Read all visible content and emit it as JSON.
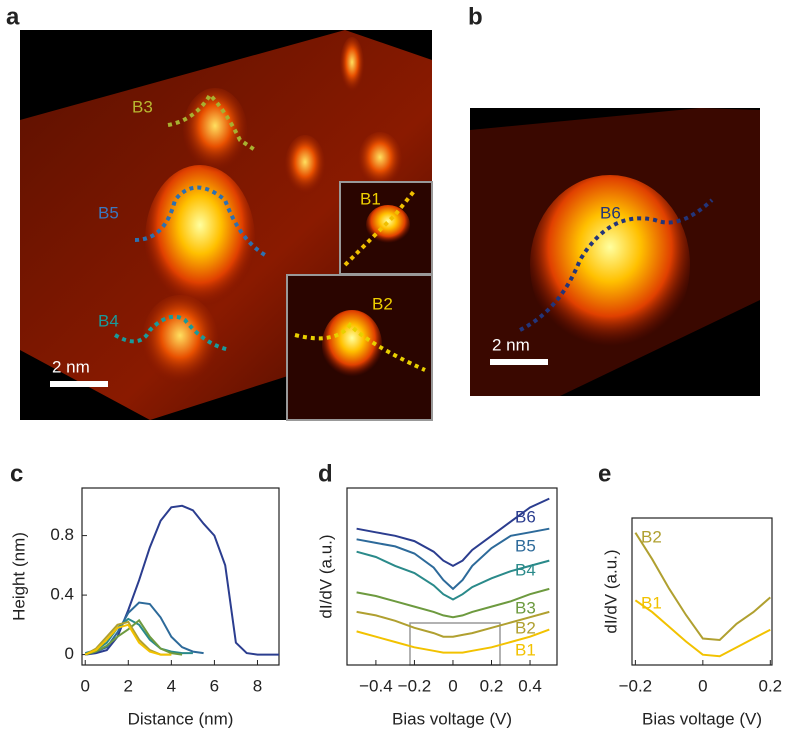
{
  "images": [
    {
      "label": "a",
      "annotations": [
        "B3",
        "B5",
        "B4",
        "B1",
        "B2"
      ],
      "scale_bar": "2 nm"
    },
    {
      "label": "b",
      "annotations": [
        "B6"
      ],
      "scale_bar": "2 nm"
    }
  ],
  "chart_data": [
    {
      "type": "line",
      "label": "c",
      "xlabel": "Distance (nm)",
      "ylabel": "Height (nm)",
      "xlim": [
        -0.15,
        9.0
      ],
      "xticks": [
        0,
        2,
        4,
        6,
        8
      ],
      "ylim": [
        -0.07,
        1.12
      ],
      "yticks": [
        0,
        0.4,
        0.8
      ],
      "series": [
        {
          "color": "#2b3d8f",
          "x": [
            0,
            0.5,
            1,
            1.5,
            2,
            2.5,
            3,
            3.5,
            4,
            4.5,
            5,
            5.5,
            6,
            6.5,
            7,
            7.5,
            8,
            8.5,
            9
          ],
          "values": [
            0.0,
            0.01,
            0.03,
            0.12,
            0.3,
            0.5,
            0.72,
            0.9,
            0.99,
            1.0,
            0.97,
            0.88,
            0.8,
            0.6,
            0.08,
            0.01,
            0.0,
            0.0,
            0.0
          ]
        },
        {
          "color": "#2d6a9a",
          "x": [
            0,
            0.5,
            1,
            1.5,
            2,
            2.5,
            3,
            3.5,
            4,
            4.5,
            5,
            5.5
          ],
          "values": [
            0.0,
            0.02,
            0.05,
            0.15,
            0.28,
            0.35,
            0.34,
            0.25,
            0.12,
            0.05,
            0.02,
            0.01
          ]
        },
        {
          "color": "#2a8a8a",
          "x": [
            0,
            0.5,
            1,
            1.5,
            2,
            2.5,
            3,
            3.5,
            4,
            4.5,
            5
          ],
          "values": [
            0.01,
            0.03,
            0.08,
            0.18,
            0.24,
            0.2,
            0.1,
            0.04,
            0.02,
            0.01,
            0.01
          ]
        },
        {
          "color": "#6d9a3f",
          "x": [
            0,
            0.5,
            1,
            1.5,
            2,
            2.5,
            3,
            3.5,
            4,
            4.5
          ],
          "values": [
            0.0,
            0.02,
            0.06,
            0.12,
            0.17,
            0.23,
            0.12,
            0.04,
            0.01,
            0.0
          ]
        },
        {
          "color": "#b0a030",
          "x": [
            0,
            0.5,
            1,
            1.5,
            2,
            2.5,
            3,
            3.5,
            4
          ],
          "values": [
            0.0,
            0.04,
            0.12,
            0.2,
            0.22,
            0.1,
            0.03,
            0.0,
            0.0
          ]
        },
        {
          "color": "#f2c200",
          "x": [
            0,
            0.5,
            1,
            1.5,
            2,
            2.5,
            3,
            3.5,
            4
          ],
          "values": [
            0.0,
            0.03,
            0.1,
            0.18,
            0.2,
            0.08,
            0.02,
            0.0,
            0.0
          ]
        }
      ]
    },
    {
      "type": "line",
      "label": "d",
      "xlabel": "Bias voltage (V)",
      "ylabel": "dI/dV (a.u.)",
      "xlim": [
        -0.55,
        0.54
      ],
      "xticks": [
        {
          "value": -0.4,
          "label": "−0.4"
        },
        {
          "value": -0.2,
          "label": "−0.2"
        },
        0,
        0.2,
        0.4
      ],
      "ylim": [
        0,
        10
      ],
      "series": [
        {
          "name": "B6",
          "color": "#2b3d8f",
          "x": [
            -0.5,
            -0.4,
            -0.3,
            -0.2,
            -0.1,
            -0.05,
            0,
            0.05,
            0.1,
            0.2,
            0.3,
            0.4,
            0.5
          ],
          "values": [
            7.7,
            7.5,
            7.3,
            7.0,
            6.4,
            5.9,
            5.6,
            5.9,
            6.5,
            7.3,
            8.1,
            8.9,
            9.4
          ]
        },
        {
          "name": "B5",
          "color": "#2d6a9a",
          "x": [
            -0.5,
            -0.4,
            -0.3,
            -0.2,
            -0.1,
            -0.05,
            0,
            0.05,
            0.1,
            0.2,
            0.3,
            0.4,
            0.5
          ],
          "values": [
            7.1,
            6.9,
            6.7,
            6.3,
            5.5,
            4.8,
            4.3,
            4.8,
            5.6,
            6.6,
            7.3,
            7.5,
            7.7
          ]
        },
        {
          "name": "B4",
          "color": "#2a8a8a",
          "x": [
            -0.5,
            -0.4,
            -0.3,
            -0.2,
            -0.1,
            -0.05,
            0,
            0.05,
            0.1,
            0.2,
            0.3,
            0.4,
            0.5
          ],
          "values": [
            6.4,
            6.1,
            5.6,
            5.2,
            4.5,
            4.0,
            3.7,
            4.0,
            4.4,
            4.9,
            5.3,
            5.6,
            5.9
          ]
        },
        {
          "name": "B3",
          "color": "#6d9a3f",
          "x": [
            -0.5,
            -0.4,
            -0.3,
            -0.2,
            -0.1,
            -0.05,
            0,
            0.05,
            0.1,
            0.2,
            0.3,
            0.4,
            0.5
          ],
          "values": [
            4.1,
            3.9,
            3.6,
            3.3,
            3.0,
            2.8,
            2.7,
            2.8,
            3.0,
            3.3,
            3.6,
            4.0,
            4.3
          ]
        },
        {
          "name": "B2",
          "color": "#b0a030",
          "x": [
            -0.5,
            -0.4,
            -0.3,
            -0.2,
            -0.1,
            -0.05,
            0,
            0.05,
            0.1,
            0.2,
            0.3,
            0.4,
            0.5
          ],
          "values": [
            3.0,
            2.8,
            2.5,
            2.1,
            1.8,
            1.6,
            1.6,
            1.7,
            1.8,
            2.1,
            2.4,
            2.7,
            3.0
          ]
        },
        {
          "name": "B1",
          "color": "#f2c200",
          "x": [
            -0.5,
            -0.4,
            -0.3,
            -0.2,
            -0.1,
            -0.05,
            0,
            0.05,
            0.1,
            0.2,
            0.3,
            0.4,
            0.5
          ],
          "values": [
            1.9,
            1.6,
            1.3,
            1.0,
            0.8,
            0.7,
            0.7,
            0.7,
            0.8,
            1.0,
            1.3,
            1.6,
            2.0
          ]
        }
      ]
    },
    {
      "type": "line",
      "label": "e",
      "xlabel": "Bias voltage (V)",
      "ylabel": "dI/dV (a.u.)",
      "xlim": [
        -0.21,
        0.205
      ],
      "xticks": [
        {
          "value": -0.2,
          "label": "−0.2"
        },
        0,
        0.2
      ],
      "ylim": [
        0,
        10
      ],
      "series": [
        {
          "name": "B2",
          "color": "#b0a030",
          "x": [
            -0.2,
            -0.15,
            -0.1,
            -0.05,
            0,
            0.05,
            0.1,
            0.15,
            0.2
          ],
          "values": [
            9.0,
            7.2,
            5.2,
            3.4,
            1.8,
            1.7,
            2.8,
            3.6,
            4.6
          ]
        },
        {
          "name": "B1",
          "color": "#f2c200",
          "x": [
            -0.2,
            -0.15,
            -0.1,
            -0.05,
            0,
            0.05,
            0.1,
            0.15,
            0.2
          ],
          "values": [
            4.4,
            3.6,
            2.6,
            1.6,
            0.7,
            0.6,
            1.2,
            1.8,
            2.4
          ]
        }
      ]
    }
  ]
}
